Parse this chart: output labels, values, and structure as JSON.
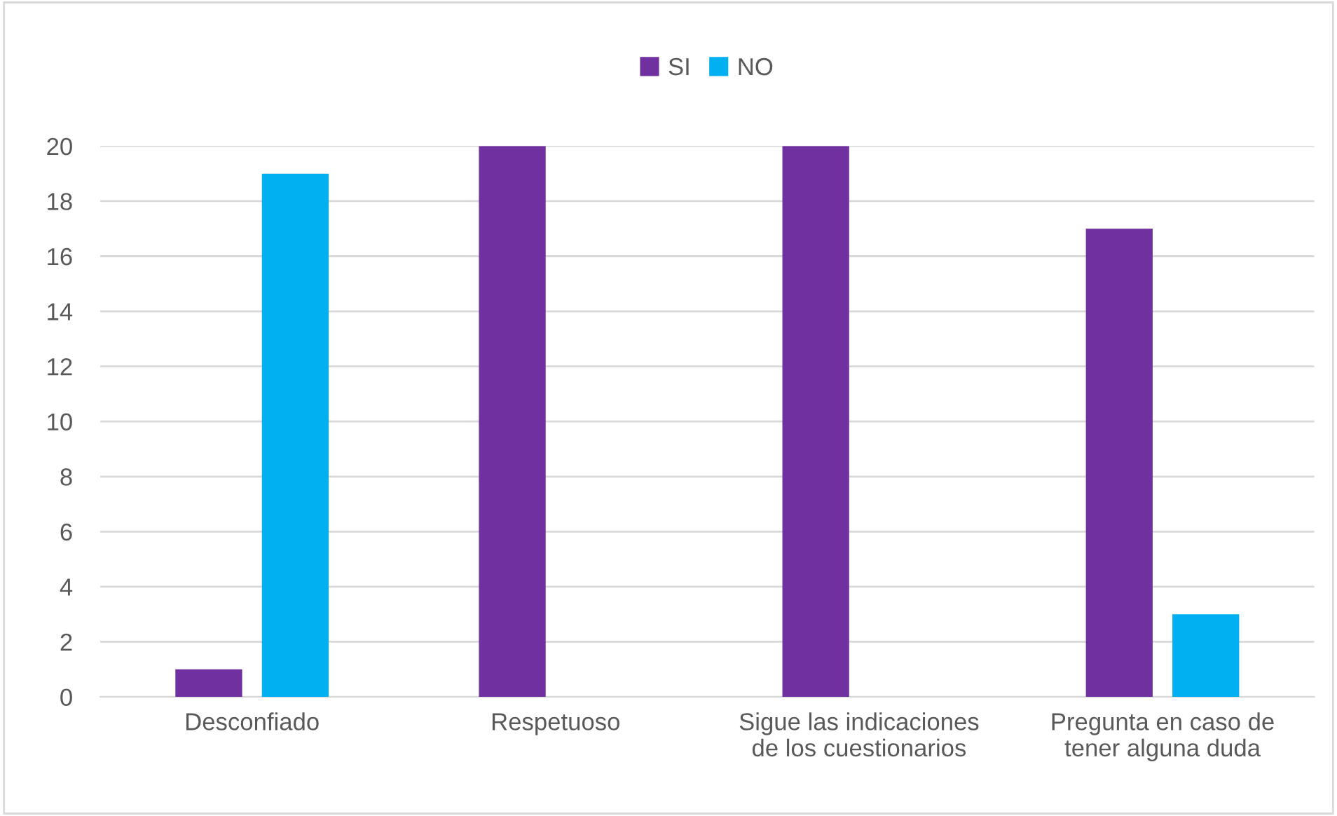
{
  "chart_data": {
    "type": "bar",
    "categories": [
      "Desconfiado",
      "Respetuoso",
      "Sigue las indicaciones\nde los cuestionarios",
      "Pregunta en caso de\ntener alguna duda"
    ],
    "series": [
      {
        "name": "SI",
        "color": "#7030a0",
        "values": [
          1,
          20,
          20,
          17
        ]
      },
      {
        "name": "NO",
        "color": "#00b0f0",
        "values": [
          19,
          0,
          0,
          3
        ]
      }
    ],
    "ylim": [
      0,
      20
    ],
    "yticks": [
      0,
      2,
      4,
      6,
      8,
      10,
      12,
      14,
      16,
      18,
      20
    ],
    "grid": "y",
    "legend": "top"
  }
}
